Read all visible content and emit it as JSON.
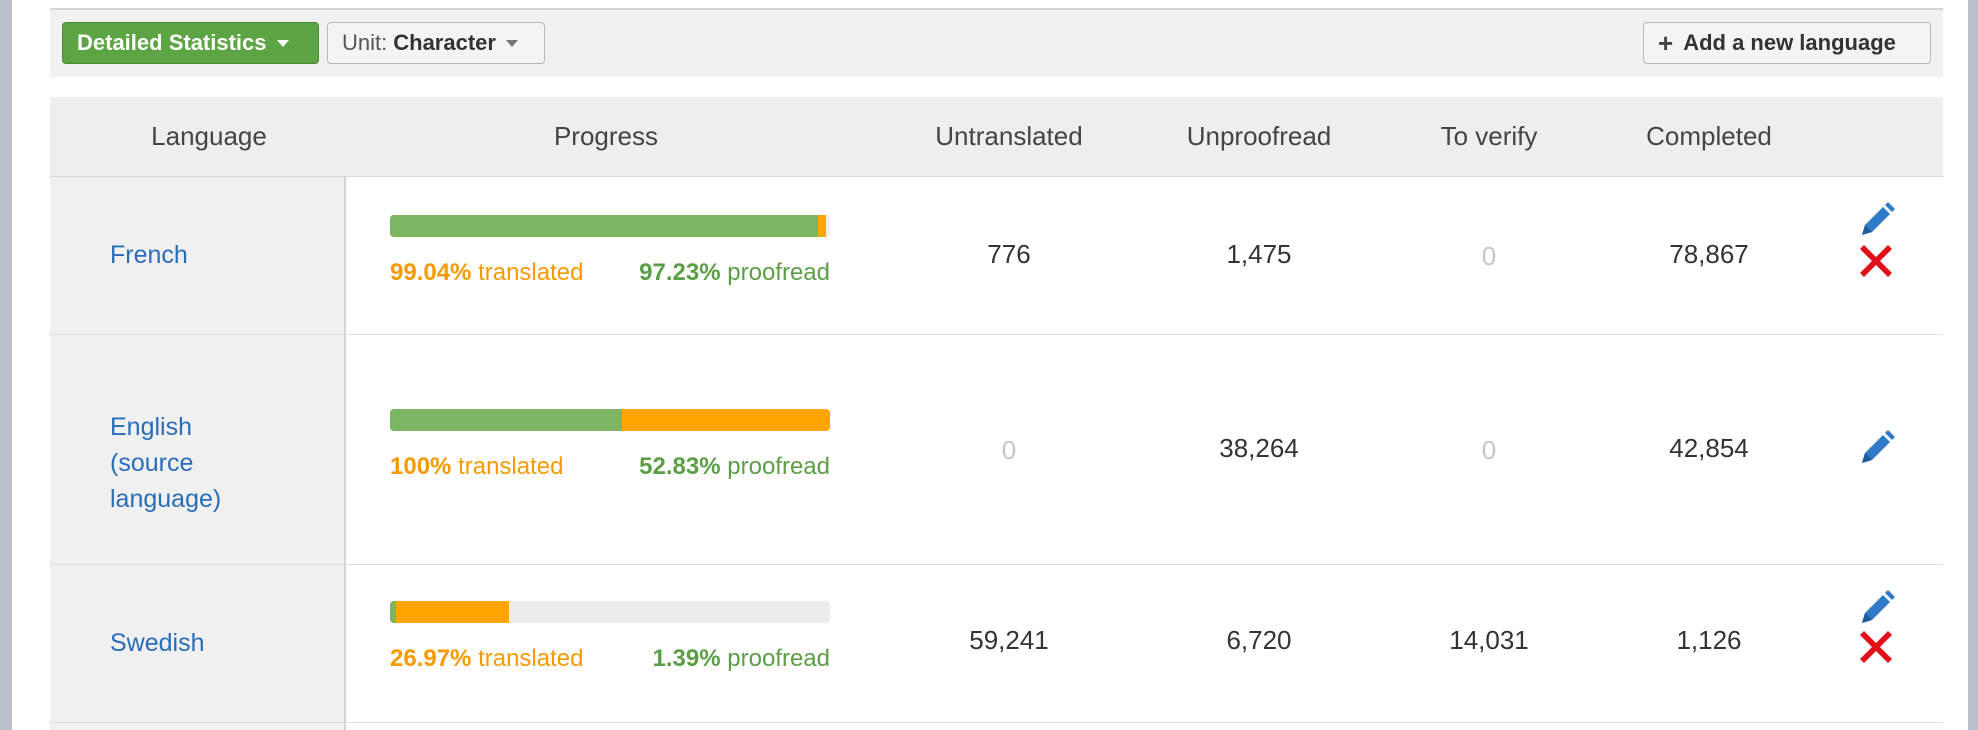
{
  "toolbar": {
    "stats_label": "Detailed Statistics",
    "unit_prefix": "Unit:",
    "unit_value": "Character",
    "add_label": "Add a new language"
  },
  "columns": [
    "Language",
    "Progress",
    "Untranslated",
    "Unproofread",
    "To verify",
    "Completed"
  ],
  "rows": [
    {
      "language": "French",
      "translated_pct": "99.04%",
      "translated_word": "translated",
      "proofread_pct": "97.23%",
      "proofread_word": "proofread",
      "translated_fraction": 0.9904,
      "proofread_fraction": 0.9723,
      "untranslated": "776",
      "unproofread": "1,475",
      "to_verify": "0",
      "completed": "78,867",
      "actions": [
        "pencil-icon",
        "delete-icon"
      ]
    },
    {
      "language": "English (source language)",
      "translated_pct": "100%",
      "translated_word": "translated",
      "proofread_pct": "52.83%",
      "proofread_word": "proofread",
      "translated_fraction": 1.0,
      "proofread_fraction": 0.5283,
      "untranslated": "0",
      "unproofread": "38,264",
      "to_verify": "0",
      "completed": "42,854",
      "actions": [
        "pencil-icon"
      ]
    },
    {
      "language": "Swedish",
      "translated_pct": "26.97%",
      "translated_word": "translated",
      "proofread_pct": "1.39%",
      "proofread_word": "proofread",
      "translated_fraction": 0.2697,
      "proofread_fraction": 0.0139,
      "untranslated": "59,241",
      "unproofread": "6,720",
      "to_verify": "14,031",
      "completed": "1,126",
      "actions": [
        "pencil-icon",
        "delete-icon"
      ]
    }
  ],
  "colors": {
    "translated": "#ffa500",
    "proofread": "#7db663",
    "link": "#2a6db7",
    "delete": "#e0101a",
    "edit": "#2f7bc8"
  }
}
